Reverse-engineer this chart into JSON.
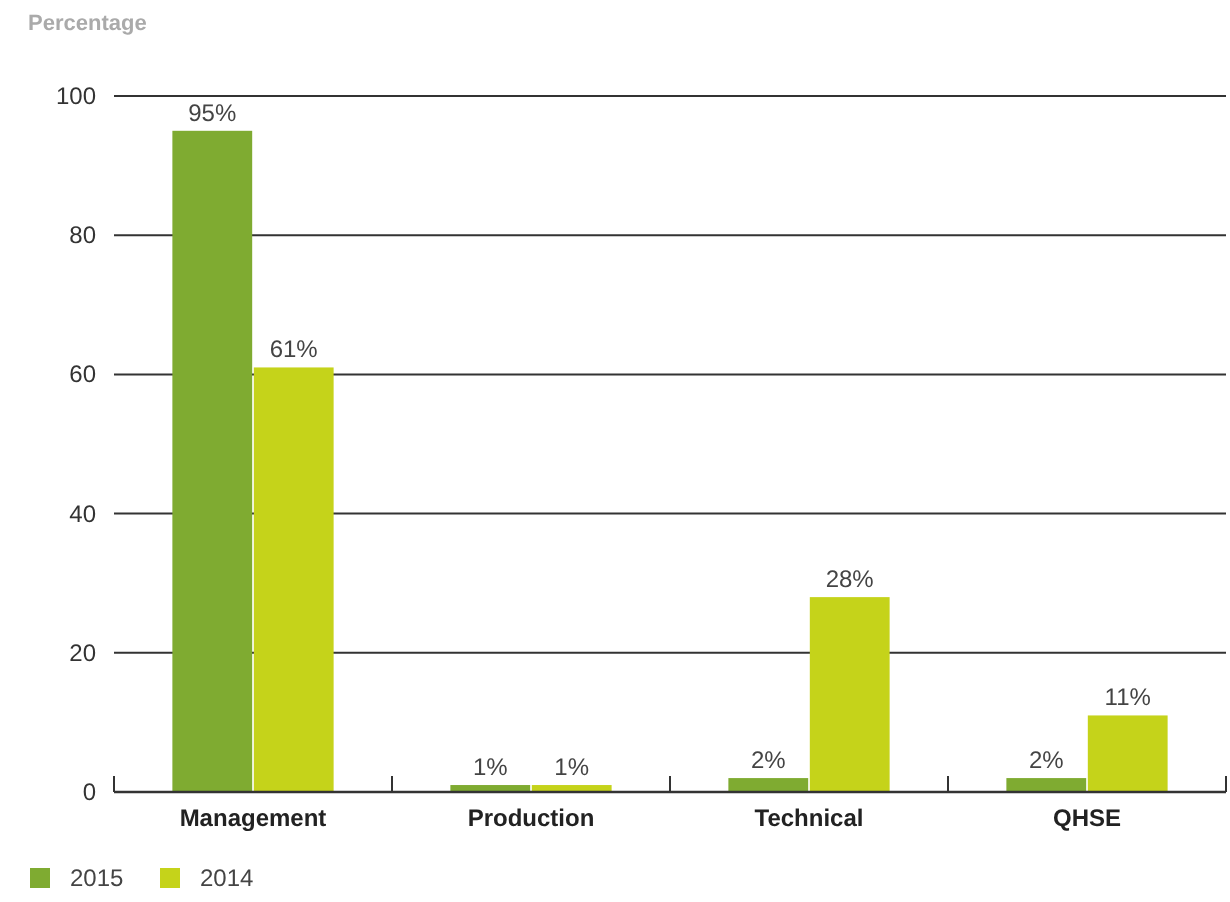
{
  "chart_data": {
    "type": "bar",
    "ylabel": "Percentage",
    "categories": [
      "Management",
      "Production",
      "Technical",
      "QHSE"
    ],
    "series": [
      {
        "name": "2015",
        "color": "#7fab31",
        "values": [
          95,
          1,
          2,
          2
        ],
        "value_labels": [
          "95%",
          "1%",
          "2%",
          "2%"
        ]
      },
      {
        "name": "2014",
        "color": "#c5d31a",
        "values": [
          61,
          1,
          28,
          11
        ],
        "value_labels": [
          "61%",
          "1%",
          "28%",
          "11%"
        ]
      }
    ],
    "ylim": [
      0,
      100
    ],
    "yticks": [
      0,
      20,
      40,
      60,
      80,
      100
    ],
    "grid": "y",
    "legend": "bottom"
  }
}
